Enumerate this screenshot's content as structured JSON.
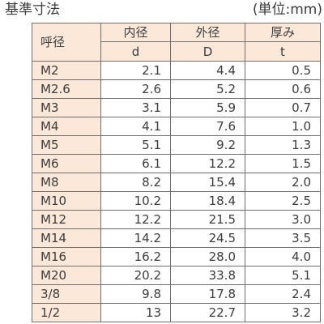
{
  "caption": {
    "title": "基準寸法",
    "unit": "(単位:mm)"
  },
  "table": {
    "header": {
      "name": "呼径",
      "inner": "内径",
      "outer": "外径",
      "thickness": "厚み"
    },
    "symbols": {
      "inner": "d",
      "outer": "D",
      "thickness": "t"
    },
    "rows": [
      {
        "name": "M2",
        "d": "2.1",
        "D": "4.4",
        "t": "0.5"
      },
      {
        "name": "M2.6",
        "d": "2.6",
        "D": "5.2",
        "t": "0.6"
      },
      {
        "name": "M3",
        "d": "3.1",
        "D": "5.9",
        "t": "0.7"
      },
      {
        "name": "M4",
        "d": "4.1",
        "D": "7.6",
        "t": "1.0"
      },
      {
        "name": "M5",
        "d": "5.1",
        "D": "9.2",
        "t": "1.3"
      },
      {
        "name": "M6",
        "d": "6.1",
        "D": "12.2",
        "t": "1.5"
      },
      {
        "name": "M8",
        "d": "8.2",
        "D": "15.4",
        "t": "2.0"
      },
      {
        "name": "M10",
        "d": "10.2",
        "D": "18.4",
        "t": "2.5"
      },
      {
        "name": "M12",
        "d": "12.2",
        "D": "21.5",
        "t": "3.0"
      },
      {
        "name": "M14",
        "d": "14.2",
        "D": "24.5",
        "t": "3.5"
      },
      {
        "name": "M16",
        "d": "16.2",
        "D": "28.0",
        "t": "4.0"
      },
      {
        "name": "M20",
        "d": "20.2",
        "D": "33.8",
        "t": "5.1"
      },
      {
        "name": "3/8",
        "d": "9.8",
        "D": "17.8",
        "t": "2.4"
      },
      {
        "name": "1/2",
        "d": "13",
        "D": "22.7",
        "t": "3.2"
      }
    ]
  },
  "colors": {
    "header_fill": "#fbe8d8",
    "grid_line": "#6f6f6f",
    "text": "#3c3c3c"
  }
}
